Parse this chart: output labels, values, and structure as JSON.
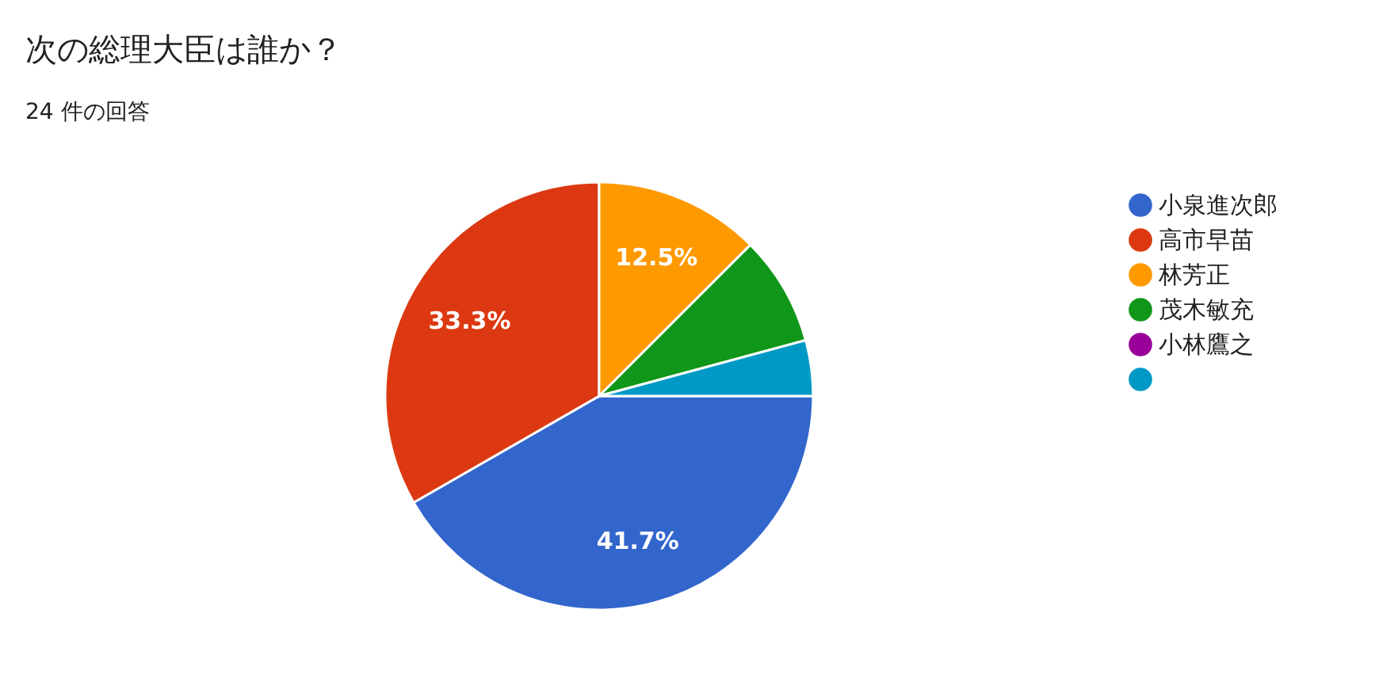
{
  "chart_data": {
    "type": "pie",
    "title": "次の総理大臣は誰か？",
    "subtitle": "24 件の回答",
    "categories": [
      "小泉進次郎",
      "高市早苗",
      "林芳正",
      "茂木敏充",
      "小林鷹之",
      null
    ],
    "values": [
      41.7,
      33.3,
      12.5,
      8.3,
      0,
      4.2
    ],
    "colors": [
      "#3366cc",
      "#dc3912",
      "#ff9900",
      "#109618",
      "#990099",
      "#0099c6"
    ],
    "value_labels": [
      "41.7%",
      "33.3%",
      "12.5%",
      null,
      null,
      null
    ],
    "legend": "right"
  }
}
